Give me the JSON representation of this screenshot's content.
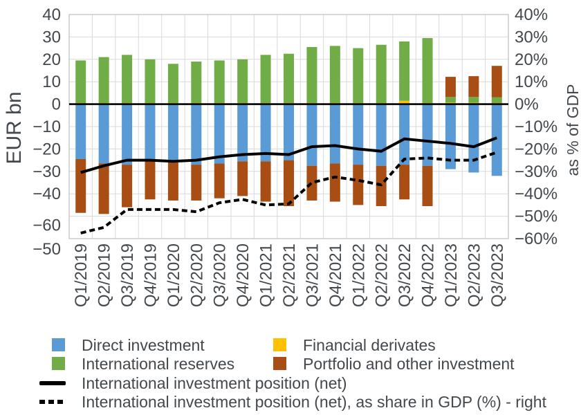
{
  "chart_data": {
    "type": "bar",
    "subtype": "stacked-bars-with-lines",
    "categories": [
      "Q1/2019",
      "Q2/2019",
      "Q3/2019",
      "Q4/2019",
      "Q1/2020",
      "Q2/2020",
      "Q3/2020",
      "Q4/2020",
      "Q1/2021",
      "Q2/2021",
      "Q3/2021",
      "Q4/2021",
      "Q1/2022",
      "Q2/2022",
      "Q3/2022",
      "Q4/2022",
      "Q1/2023",
      "Q2/2023",
      "Q3/2023"
    ],
    "series": [
      {
        "name": "Direct investment",
        "type": "bar",
        "color": "#5B9BD5",
        "values": [
          -24.5,
          -26.5,
          -27,
          -25,
          -26,
          -27,
          -26.5,
          -25.5,
          -25.5,
          -25,
          -27.5,
          -26.5,
          -27,
          -27.5,
          -27,
          -27.5,
          -29,
          -30.5,
          -32
        ]
      },
      {
        "name": "Financial derivates",
        "type": "bar",
        "color": "#FFC000",
        "values": [
          0.5,
          0.5,
          0.5,
          0.5,
          0.5,
          0.5,
          0.5,
          0.5,
          0.5,
          0.5,
          0.5,
          0.5,
          0.5,
          0.5,
          1.5,
          0.5,
          0.7,
          0.6,
          0.5
        ]
      },
      {
        "name": "International reserves",
        "type": "bar",
        "color": "#70AD47",
        "values": [
          19,
          20.5,
          21.5,
          19.5,
          17.5,
          18.5,
          19,
          19.5,
          21.5,
          22,
          25,
          25.5,
          24.5,
          26,
          26.5,
          29,
          2.5,
          2.6,
          2.6
        ]
      },
      {
        "name": "Portfolio and other investment",
        "type": "bar",
        "color": "#A84E14",
        "values": [
          -24,
          -22.5,
          -19,
          -17.5,
          -17,
          -16,
          -15.5,
          -15.5,
          -18,
          -20.5,
          -15.5,
          -17,
          -18,
          -18,
          -15.5,
          -18,
          9,
          9.3,
          14
        ]
      },
      {
        "name": "International investment position (net)",
        "type": "line",
        "dash": "solid",
        "color": "#000000",
        "axis": "left",
        "values": [
          -30.5,
          -27.5,
          -25,
          -25,
          -25.5,
          -25,
          -23.5,
          -22.5,
          -22,
          -22.5,
          -19,
          -18.5,
          -20,
          -21,
          -15.5,
          -16.5,
          -17.5,
          -19,
          -15
        ]
      },
      {
        "name": "International investment position (net), as share in GDP (%) - right",
        "type": "line",
        "dash": "dashed",
        "color": "#000000",
        "axis": "right",
        "values": [
          -57.5,
          -55,
          -47,
          -47,
          -47,
          -48,
          -44,
          -42.5,
          -45,
          -44.5,
          -35,
          -32.5,
          -34,
          -36,
          -24.5,
          -24,
          -25,
          -25,
          -21.5
        ]
      }
    ],
    "left_axis": {
      "title": "EUR bn",
      "tick_labels": [
        "40",
        "30",
        "20",
        "10",
        "0",
        "−10",
        "−20",
        "−30",
        "−40",
        "−60",
        "−50"
      ],
      "range": [
        40,
        -60
      ]
    },
    "right_axis": {
      "title": "as % of GDP",
      "tick_labels": [
        "40%",
        "30%",
        "20%",
        "10%",
        "0%",
        "−10%",
        "−20%",
        "−30%",
        "−40%",
        "−50%",
        "−60%"
      ],
      "range": [
        40,
        -60
      ]
    },
    "colors": {
      "grid": "#D9D9D9",
      "border": "#BFBFBF",
      "text": "#43484D",
      "zero_line": "#000000",
      "background": "#FFFFFF"
    },
    "grid": true,
    "legend_position": "bottom"
  }
}
